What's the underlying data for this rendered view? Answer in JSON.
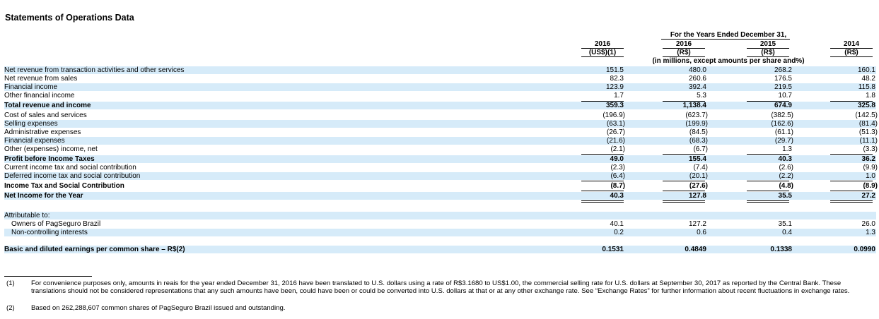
{
  "title": "Statements of Operations Data",
  "header": {
    "period": "For the Years Ended December 31,",
    "col_years": [
      "2016",
      "2016",
      "2015",
      "2014"
    ],
    "col_currency": [
      "(US$)(1)",
      "(R$)",
      "(R$)",
      "(R$)"
    ],
    "units": "(in millions, except amounts per share and%)"
  },
  "rows": [
    {
      "label": "Net revenue from transaction activities and other services",
      "values": [
        "151.5",
        "480.0",
        "268.2",
        "160.1"
      ]
    },
    {
      "label": "Net revenue from sales",
      "values": [
        "82.3",
        "260.6",
        "176.5",
        "48.2"
      ]
    },
    {
      "label": "Financial income",
      "values": [
        "123.9",
        "392.4",
        "219.5",
        "115.8"
      ]
    },
    {
      "label": "Other financial income",
      "values": [
        "1.7",
        "5.3",
        "10.7",
        "1.8"
      ]
    },
    {
      "label": "Total revenue and income",
      "values": [
        "359.3",
        "1,138.4",
        "674.9",
        "325.8"
      ]
    },
    {
      "label": "Cost of sales and services",
      "values": [
        "(196.9)",
        "(623.7)",
        "(382.5)",
        "(142.5)"
      ]
    },
    {
      "label": "Selling expenses",
      "values": [
        "(63.1)",
        "(199.9)",
        "(162.6)",
        "(81.4)"
      ]
    },
    {
      "label": "Administrative expenses",
      "values": [
        "(26.7)",
        "(84.5)",
        "(61.1)",
        "(51.3)"
      ]
    },
    {
      "label": "Financial expenses",
      "values": [
        "(21.6)",
        "(68.3)",
        "(29.7)",
        "(11.1)"
      ]
    },
    {
      "label": "Other (expenses) income, net",
      "values": [
        "(2.1)",
        "(6.7)",
        "1.3",
        "(3.3)"
      ]
    },
    {
      "label": "Profit before Income Taxes",
      "values": [
        "49.0",
        "155.4",
        "40.3",
        "36.2"
      ]
    },
    {
      "label": "Current income tax and social contribution",
      "values": [
        "(2.3)",
        "(7.4)",
        "(2.6)",
        "(9.9)"
      ]
    },
    {
      "label": "Deferred income tax and social contribution",
      "values": [
        "(6.4)",
        "(20.1)",
        "(2.2)",
        "1.0"
      ]
    },
    {
      "label": "Income Tax and Social Contribution",
      "values": [
        "(8.7)",
        "(27.6)",
        "(4.8)",
        "(8.9)"
      ]
    },
    {
      "label": "Net Income for the Year",
      "values": [
        "40.3",
        "127.8",
        "35.5",
        "27.2"
      ]
    },
    {
      "label": "Attributable to:",
      "values": [
        "",
        "",
        "",
        ""
      ]
    },
    {
      "label": "Owners of PagSeguro Brazil",
      "values": [
        "40.1",
        "127.2",
        "35.1",
        "26.0"
      ]
    },
    {
      "label": "Non-controlling interests",
      "values": [
        "0.2",
        "0.6",
        "0.4",
        "1.3"
      ]
    },
    {
      "label": "Basic and diluted earnings per common share – R$(2)",
      "values": [
        "0.1531",
        "0.4849",
        "0.1338",
        "0.0990"
      ]
    }
  ],
  "footnotes": [
    {
      "num": "(1)",
      "text": "For convenience purposes only, amounts in reais for the year ended December 31, 2016 have been translated to U.S. dollars using a rate of R$3.1680 to US$1.00, the commercial selling rate for U.S. dollars at September 30, 2017 as reported by the Central Bank. These translations should not be considered representations that any such amounts have been, could have been or could be converted into U.S. dollars at that or at any other exchange rate. See “Exchange Rates” for further information about recent fluctuations in exchange rates."
    },
    {
      "num": "(2)",
      "text": "Based on 262,288,607 common shares of PagSeguro Brazil issued and outstanding."
    }
  ]
}
